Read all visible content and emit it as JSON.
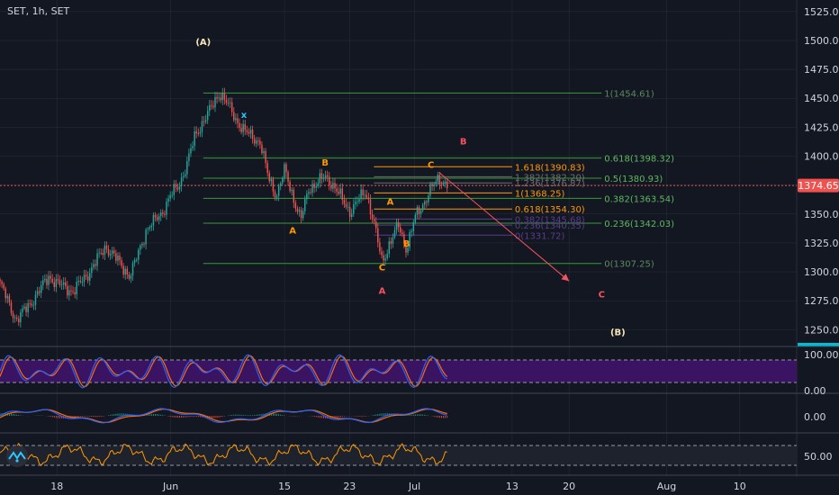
{
  "header": {
    "symbol_title": "SET, 1h, SET"
  },
  "colors": {
    "background": "#131722",
    "grid": "#2a2e39",
    "axis_text": "#b2b5be",
    "candle_up": "#26a69a",
    "candle_down": "#ef5350",
    "price_line": "#ef5350",
    "price_badge": "#ef5350",
    "fib_green": "#3a9a3a",
    "fib_orange": "#ff9800",
    "fib_purple": "#5b3c8a",
    "wave_red": "#f7525f",
    "wave_orange": "#ff9800",
    "wave_cream": "#f5e6b8",
    "x_mark": "#2ec5ff",
    "stoch_fill": "#3a1463",
    "stoch_k": "#2962ff",
    "stoch_d": "#ff6d00",
    "macd_line": "#2962ff",
    "macd_signal": "#ff6d00",
    "rsi_line": "#ff9800",
    "tv_logo": "#2ec5ff",
    "volume_bar": "#00bcd4"
  },
  "chart_data": {
    "type": "candlestick",
    "title": "SET, 1h, SET",
    "x_axis": {
      "labels": [
        "18",
        "Jun",
        "15",
        "23",
        "Jul",
        "13",
        "20",
        "Aug",
        "10"
      ],
      "positions": [
        "2020-05-18",
        "2020-06-01",
        "2020-06-15",
        "2020-06-23",
        "2020-07-01",
        "2020-07-13",
        "2020-07-20",
        "2020-08-01",
        "2020-08-10"
      ],
      "start": "2020-05-11",
      "end": "2020-08-17"
    },
    "y_axis": {
      "ticks": [
        "1525.00",
        "1500.00",
        "1475.00",
        "1450.00",
        "1425.00",
        "1400.00",
        "1375.00",
        "1350.00",
        "1325.00",
        "1300.00",
        "1275.00",
        "1250.00"
      ],
      "range": [
        1237,
        1535
      ]
    },
    "current_price": {
      "label": "1374.65",
      "value": 1374.65
    },
    "price_path": [
      [
        "2020-05-11",
        1290
      ],
      [
        "2020-05-13",
        1258
      ],
      [
        "2020-05-15",
        1275
      ],
      [
        "2020-05-17",
        1296
      ],
      [
        "2020-05-18",
        1290
      ],
      [
        "2020-05-20",
        1283
      ],
      [
        "2020-05-22",
        1300
      ],
      [
        "2020-05-24",
        1322
      ],
      [
        "2020-05-25",
        1314
      ],
      [
        "2020-05-27",
        1296
      ],
      [
        "2020-05-29",
        1336
      ],
      [
        "2020-05-31",
        1352
      ],
      [
        "2020-06-01",
        1366
      ],
      [
        "2020-06-02",
        1375
      ],
      [
        "2020-06-03",
        1393
      ],
      [
        "2020-06-04",
        1418
      ],
      [
        "2020-06-06",
        1442
      ],
      [
        "2020-06-07",
        1455
      ],
      [
        "2020-06-08",
        1445
      ],
      [
        "2020-06-09",
        1432
      ],
      [
        "2020-06-10",
        1422
      ],
      [
        "2020-06-12",
        1412
      ],
      [
        "2020-06-13",
        1382
      ],
      [
        "2020-06-14",
        1366
      ],
      [
        "2020-06-15",
        1388
      ],
      [
        "2020-06-16",
        1366
      ],
      [
        "2020-06-17",
        1345
      ],
      [
        "2020-06-18",
        1372
      ],
      [
        "2020-06-20",
        1382
      ],
      [
        "2020-06-21",
        1375
      ],
      [
        "2020-06-23",
        1352
      ],
      [
        "2020-06-25",
        1370
      ],
      [
        "2020-06-26",
        1342
      ],
      [
        "2020-06-27",
        1308
      ],
      [
        "2020-06-28",
        1326
      ],
      [
        "2020-06-29",
        1340
      ],
      [
        "2020-06-30",
        1320
      ],
      [
        "2020-07-01",
        1346
      ],
      [
        "2020-07-02",
        1358
      ],
      [
        "2020-07-03",
        1372
      ],
      [
        "2020-07-04",
        1380
      ],
      [
        "2020-07-05",
        1376
      ]
    ],
    "fib_retracement_1": {
      "color": "green",
      "levels": [
        {
          "label": "1(1454.61)",
          "value": 1454.61
        },
        {
          "label": "0.618(1398.32)",
          "value": 1398.32
        },
        {
          "label": "0.5(1380.93)",
          "value": 1380.93
        },
        {
          "label": "0.382(1363.54)",
          "value": 1363.54
        },
        {
          "label": "0.236(1342.03)",
          "value": 1342.03
        },
        {
          "label": "0(1307.25)",
          "value": 1307.25
        }
      ]
    },
    "fib_retracement_2": {
      "levels": [
        {
          "label": "1.618(1390.83)",
          "value": 1390.83,
          "color": "orange"
        },
        {
          "label": "1.382(1382.20)",
          "value": 1382.2,
          "color": "faded"
        },
        {
          "label": "1.236(1376.87)",
          "value": 1376.87,
          "color": "faded"
        },
        {
          "label": "1(1368.25)",
          "value": 1368.25,
          "color": "orange"
        },
        {
          "label": "0.618(1354.30)",
          "value": 1354.3,
          "color": "orange"
        },
        {
          "label": "0.382(1345.68)",
          "value": 1345.68,
          "color": "purple"
        },
        {
          "label": "0.236(1340.35)",
          "value": 1340.35,
          "color": "purple"
        },
        {
          "label": "0(1331.72)",
          "value": 1331.72,
          "color": "purple"
        }
      ]
    },
    "wave_labels": [
      {
        "text": "(A)",
        "x": "2020-06-05",
        "y": 1496,
        "color": "cream"
      },
      {
        "text": "x",
        "x": "2020-06-10",
        "y": 1433,
        "color": "cyan"
      },
      {
        "text": "B",
        "x": "2020-06-20",
        "y": 1392,
        "color": "orange"
      },
      {
        "text": "A",
        "x": "2020-06-16",
        "y": 1333,
        "color": "orange"
      },
      {
        "text": "A",
        "x": "2020-06-28",
        "y": 1358,
        "color": "orange"
      },
      {
        "text": "C",
        "x": "2020-06-27",
        "y": 1301,
        "color": "orange"
      },
      {
        "text": "B",
        "x": "2020-06-30",
        "y": 1322,
        "color": "orange"
      },
      {
        "text": "C",
        "x": "2020-07-03",
        "y": 1390,
        "color": "orange"
      },
      {
        "text": "A",
        "x": "2020-06-27",
        "y": 1281,
        "color": "red"
      },
      {
        "text": "B",
        "x": "2020-07-07",
        "y": 1410,
        "color": "red"
      },
      {
        "text": "C",
        "x": "2020-07-24",
        "y": 1278,
        "color": "red"
      },
      {
        "text": "(B)",
        "x": "2020-07-26",
        "y": 1245,
        "color": "cream"
      }
    ],
    "projection_arrow": {
      "from": [
        "2020-07-04",
        1386
      ],
      "to": [
        "2020-07-20",
        1292
      ]
    },
    "indicators": [
      {
        "name": "stochastic",
        "axis_labels": [
          "100.00",
          "0.00"
        ],
        "bands": [
          80,
          20
        ]
      },
      {
        "name": "macd",
        "axis_labels": [
          "0.00"
        ]
      },
      {
        "name": "rsi",
        "axis_labels": [
          "50.00"
        ],
        "bands": [
          70,
          30
        ]
      }
    ]
  }
}
